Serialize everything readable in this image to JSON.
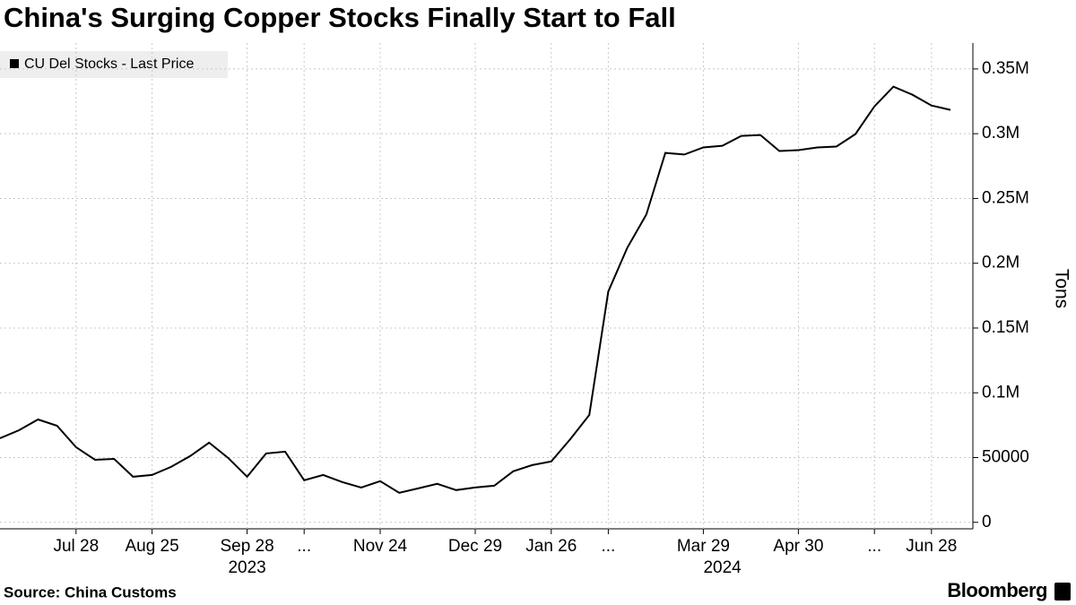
{
  "chart_data": {
    "type": "line",
    "title": "China's Surging Copper Stocks Finally Start to Fall",
    "source": "Source: China Customs",
    "brand": "Bloomberg",
    "y_label": "Tons",
    "categories": [
      null,
      null,
      null,
      null,
      "Jul 28",
      null,
      null,
      null,
      "Aug 25",
      null,
      null,
      null,
      null,
      "Sep 28",
      null,
      null,
      "...",
      null,
      null,
      null,
      "Nov 24",
      null,
      null,
      null,
      null,
      "Dec 29",
      null,
      null,
      null,
      "Jan 26",
      null,
      null,
      "...",
      null,
      null,
      null,
      null,
      "Mar 29",
      null,
      null,
      null,
      null,
      "Apr 30",
      null,
      null,
      null,
      "...",
      null,
      null,
      "Jun 28",
      null
    ],
    "year_labels": [
      null,
      null,
      null,
      null,
      null,
      null,
      null,
      null,
      null,
      null,
      null,
      null,
      null,
      "2023",
      null,
      null,
      null,
      null,
      null,
      null,
      null,
      null,
      null,
      null,
      null,
      null,
      null,
      null,
      null,
      null,
      null,
      null,
      null,
      null,
      null,
      null,
      null,
      null,
      "2024",
      null,
      null,
      null,
      null,
      null,
      null,
      null,
      null,
      null,
      null,
      null,
      null
    ],
    "series": [
      {
        "name": "CU Del Stocks - Last Price",
        "color": "#000000",
        "values": [
          64900,
          71100,
          79400,
          74600,
          58000,
          48300,
          49000,
          35200,
          36600,
          42800,
          51100,
          61500,
          49700,
          35200,
          53200,
          54600,
          32500,
          36600,
          31100,
          26900,
          31800,
          22800,
          26200,
          29700,
          24900,
          26900,
          28300,
          39400,
          44200,
          47000,
          64200,
          82900,
          178200,
          212000,
          237600,
          285200,
          283900,
          289400,
          290700,
          298300,
          299000,
          286600,
          287300,
          289400,
          290100,
          299700,
          321100,
          336300,
          330100,
          321800,
          318400
        ]
      }
    ],
    "ylim": [
      -5000,
      370000
    ],
    "yticks": [
      0,
      50000,
      {
        "value": 100000,
        "label": "0.1M"
      },
      {
        "value": 150000,
        "label": "0.15M"
      },
      {
        "value": 200000,
        "label": "0.2M"
      },
      {
        "value": 250000,
        "label": "0.25M"
      },
      {
        "value": 300000,
        "label": "0.3M"
      },
      {
        "value": 350000,
        "label": "0.35M"
      }
    ],
    "grid": true
  }
}
